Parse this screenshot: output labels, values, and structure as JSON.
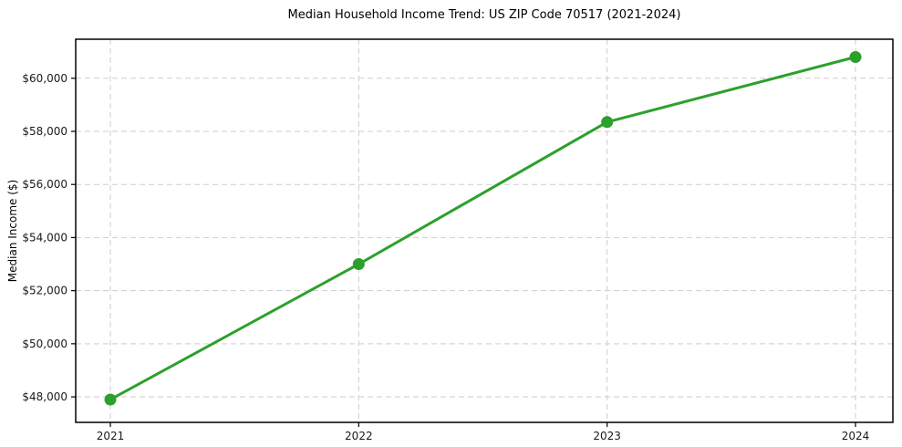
{
  "chart_data": {
    "type": "line",
    "title": "Median Household Income Trend: US ZIP Code 70517 (2021-2024)",
    "xlabel": "",
    "ylabel": "Median Income ($)",
    "categories": [
      2021,
      2022,
      2023,
      2024
    ],
    "xtick_labels": [
      "2021",
      "2022",
      "2023",
      "2024"
    ],
    "series": [
      {
        "name": "Median Household Income",
        "values": [
          47900,
          53000,
          58350,
          60800
        ]
      }
    ],
    "ytick_values": [
      48000,
      50000,
      52000,
      54000,
      56000,
      58000,
      60000
    ],
    "ytick_labels": [
      "$48,000",
      "$50,000",
      "$52,000",
      "$54,000",
      "$56,000",
      "$58,000",
      "$60,000"
    ],
    "ylim": [
      47040,
      61470
    ],
    "grid": "both, dashed",
    "legend": "none",
    "line_color": "#2ca02c",
    "grid_color": "#cdcdcd",
    "axis_color": "#000000",
    "tick_label_color": "#1a1a1a",
    "marker": "circle",
    "background": "#ffffff"
  }
}
